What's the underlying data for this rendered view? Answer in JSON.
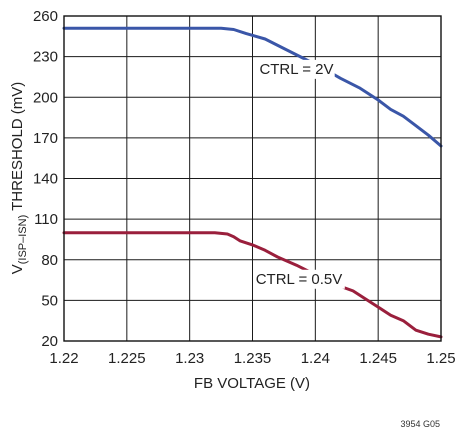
{
  "chart_data": {
    "type": "line",
    "xlabel": "FB VOLTAGE (V)",
    "ylabel": {
      "prefix": "V",
      "sub": "(ISP–ISN)",
      "rest": " THRESHOLD (mV)"
    },
    "xlim": [
      1.22,
      1.25
    ],
    "ylim": [
      20,
      260
    ],
    "xticks": [
      1.22,
      1.225,
      1.23,
      1.235,
      1.24,
      1.245,
      1.25
    ],
    "xtick_labels": [
      "1.22",
      "1.225",
      "1.23",
      "1.235",
      "1.24",
      "1.245",
      "1.25"
    ],
    "yticks": [
      20,
      50,
      80,
      110,
      140,
      170,
      200,
      230,
      260
    ],
    "ytick_labels": [
      "20",
      "50",
      "80",
      "110",
      "140",
      "170",
      "200",
      "230",
      "260"
    ],
    "grid": true,
    "series": [
      {
        "name": "CTRL = 2V",
        "color": "#3a56a8",
        "x": [
          1.22,
          1.225,
          1.23,
          1.2325,
          1.2335,
          1.2345,
          1.236,
          1.2375,
          1.239,
          1.2405,
          1.242,
          1.2435,
          1.245,
          1.246,
          1.247,
          1.248,
          1.249,
          1.25
        ],
        "y": [
          251,
          251,
          251,
          251,
          250,
          247,
          243,
          236,
          229,
          222,
          214,
          207,
          198,
          191,
          186,
          179,
          172,
          164
        ]
      },
      {
        "name": "CTRL = 0.5V",
        "color": "#9a1f3c",
        "x": [
          1.22,
          1.225,
          1.23,
          1.232,
          1.233,
          1.2335,
          1.234,
          1.235,
          1.236,
          1.237,
          1.2385,
          1.24,
          1.2415,
          1.243,
          1.244,
          1.245,
          1.246,
          1.247,
          1.248,
          1.249,
          1.25
        ],
        "y": [
          100,
          100,
          100,
          100,
          99,
          97,
          94,
          91,
          87,
          82,
          76,
          69,
          62,
          57,
          51,
          45,
          39,
          35,
          28,
          25,
          23
        ]
      }
    ],
    "annotations": [
      {
        "text": "CTRL = 2V",
        "x": 1.2385,
        "y": 218
      },
      {
        "text": "CTRL = 0.5V",
        "x": 1.2387,
        "y": 63
      }
    ],
    "figure_id": "3954 G05"
  }
}
